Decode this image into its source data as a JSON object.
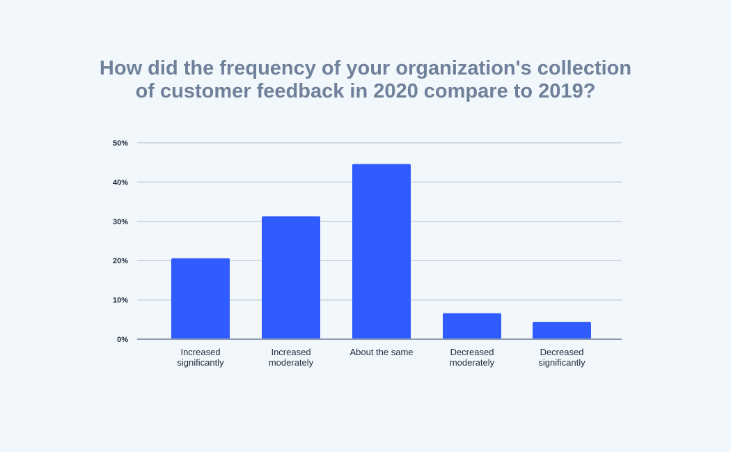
{
  "chart_data": {
    "type": "bar",
    "title": "How did the frequency of your organization's collection\nof customer feedback in 2020 compare to 2019?",
    "xlabel": "",
    "ylabel": "",
    "ylim": [
      0,
      50
    ],
    "yticks": [
      0,
      10,
      20,
      30,
      40,
      50
    ],
    "ytick_labels": [
      "0%",
      "10%",
      "20%",
      "30%",
      "40%",
      "50%"
    ],
    "grid": true,
    "categories": [
      [
        "Increased",
        "significantly"
      ],
      [
        "Increased",
        "moderately"
      ],
      [
        "About the same"
      ],
      [
        "Decreased",
        "moderately"
      ],
      [
        "Decreased",
        "significantly"
      ]
    ],
    "values": [
      20.6,
      31.3,
      44.6,
      6.6,
      4.4
    ],
    "bar_color": "#2f5bff",
    "grid_color": "#c5cedc",
    "axis_color": "#8c9bb4"
  }
}
